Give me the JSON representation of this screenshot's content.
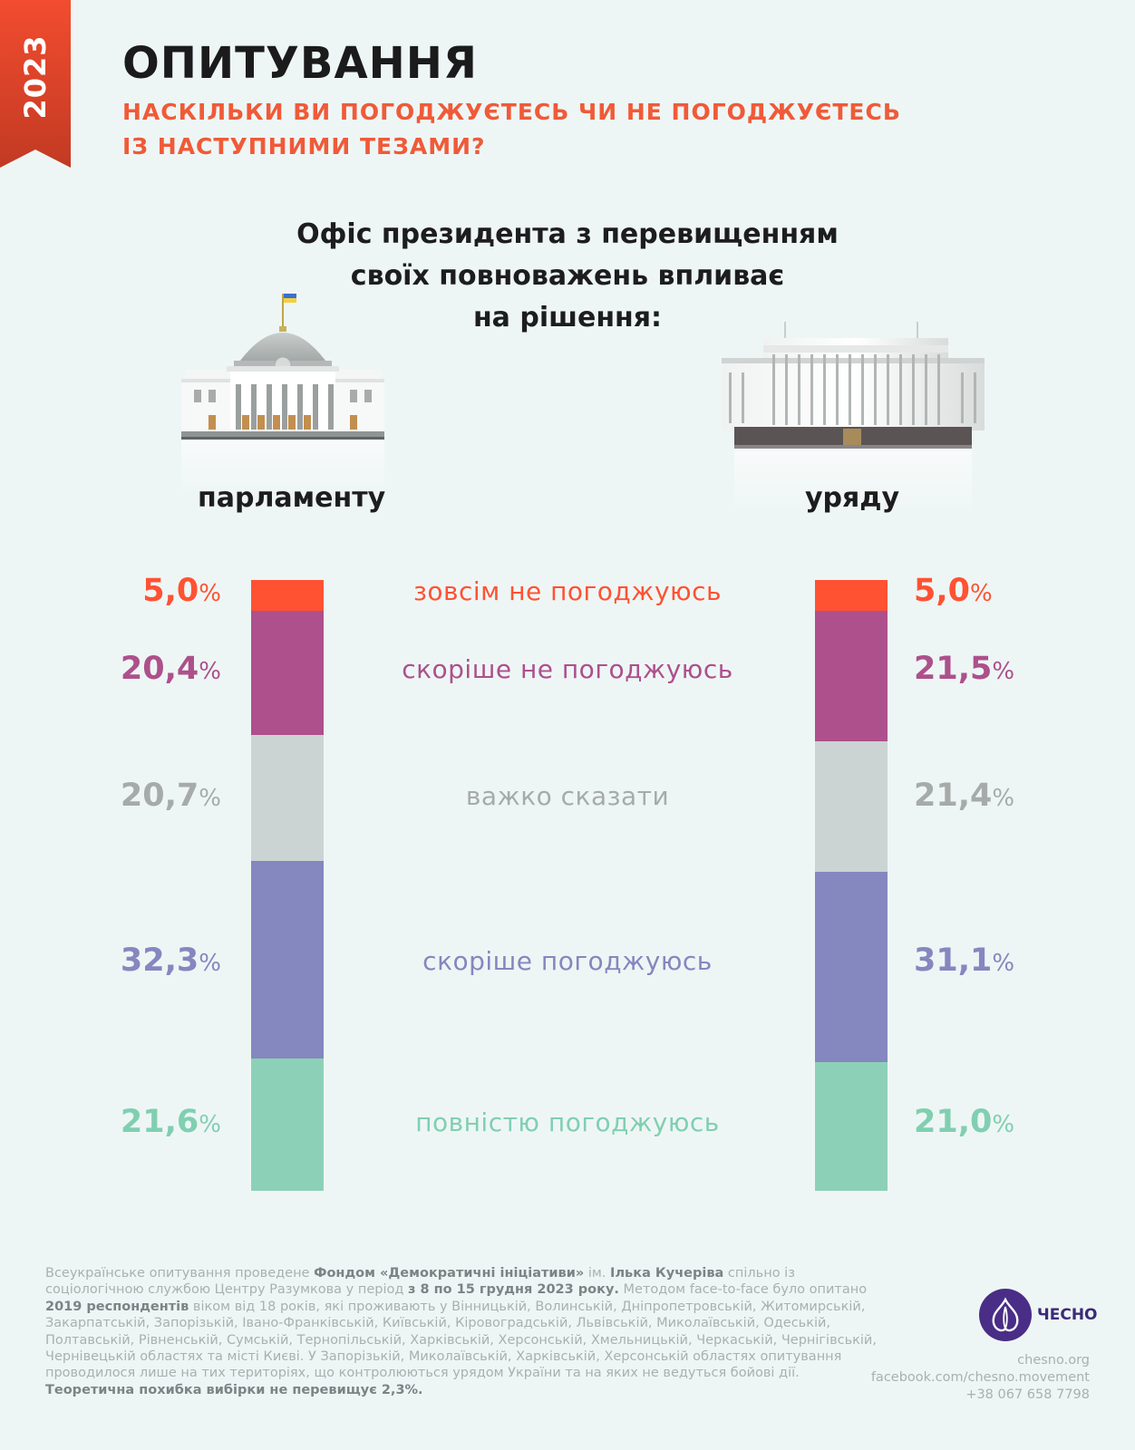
{
  "header": {
    "year": "2023",
    "title": "ОПИТУВАННЯ",
    "subtitle_line1": "НАСКІЛЬКИ ВИ ПОГОДЖУЄТЕСЬ ЧИ НЕ ПОГОДЖУЄТЕСЬ",
    "subtitle_line2": "ІЗ НАСТУПНИМИ ТЕЗАМИ?"
  },
  "question": {
    "line1": "Офіс президента з перевищенням",
    "line2": "своїх  повноважень впливає",
    "line3": "на рішення:"
  },
  "colors": {
    "strongly_disagree": "#ff5233",
    "rather_disagree": "#ad508c",
    "hard_to_say": "#cbd4d2",
    "rather_agree": "#8587bf",
    "fully_agree": "#8cd1b7",
    "hard_to_say_text": "#a6abaa",
    "fully_agree_text": "#80cfb1"
  },
  "chart_data": {
    "type": "bar",
    "stacked": true,
    "orientation": "vertical",
    "categories": [
      "парламенту",
      "уряду"
    ],
    "series": [
      {
        "name": "зовсім не погоджуюсь",
        "values": [
          5.0,
          5.0
        ]
      },
      {
        "name": "скоріше не погоджуюсь",
        "values": [
          20.4,
          21.5
        ]
      },
      {
        "name": "важко сказати",
        "values": [
          20.7,
          21.4
        ]
      },
      {
        "name": "скоріше погоджуюсь",
        "values": [
          32.3,
          31.1
        ]
      },
      {
        "name": "повністю погоджуюсь",
        "values": [
          21.6,
          21.0
        ]
      }
    ],
    "value_labels": {
      "parliament": [
        "5,0",
        "20,4",
        "20,7",
        "32,3",
        "21,6"
      ],
      "government": [
        "5,0",
        "21,5",
        "21,4",
        "31,1",
        "21,0"
      ]
    },
    "percent_sign": "%",
    "unit": "%"
  },
  "footnote": {
    "p1": "Всеукраїнське опитування проведене ",
    "b1": "Фондом «Демократичні ініціативи»",
    "p2": " ім. ",
    "b2": "Ілька Кучеріва",
    "p3": " спільно із соціологічною службою Центру Разумкова у період ",
    "b3": "з 8 по 15 грудня 2023 року.",
    "p4": " Методом face-to-face було опитано ",
    "b4": "2019 респондентів",
    "p5": " віком від 18 років, які проживають у Вінницькій, Волинській, Дніпропетровській, Житомирській, Закарпатській, Запорізькій, Івано-Франківській, Київській, Кіровоградській, Львівській, Миколаївській, Одеській, Полтавській, Рівненській, Сумській, Тернопільській, Харківській, Херсонській, Хмельницькій, Черкаській, Чернігівській, Чернівецькій областях та місті Києві. У Запорізькій, Миколаївській, Харківській, Херсонській областях опитування проводилося лише на тих територіях, що контролюються урядом України та на яких не ведуться бойові дії.",
    "b5": "Теоретична похибка вибірки не перевищує 2,3%."
  },
  "brand": {
    "name": "ЧЕСНО",
    "site": "chesno.org",
    "facebook": "facebook.com/chesno.movement",
    "phone": "+38 067 658 7798"
  }
}
